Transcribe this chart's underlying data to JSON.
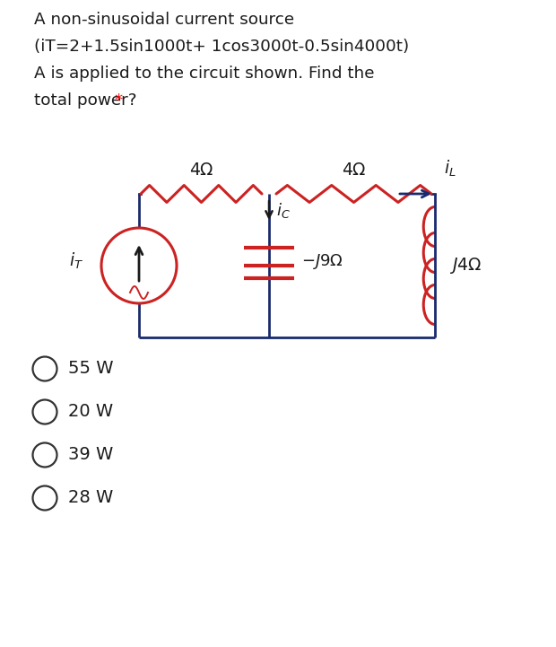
{
  "bg_color": "#ffffff",
  "title_lines": [
    "A non-sinusoidal current source",
    "(iT=2+1.5sin1000t+ 1cos3000t-0.5sin4000t)",
    "A is applied to the circuit shown. Find the",
    "total power? *"
  ],
  "title_color": "#1a1a1a",
  "title_fontsize": 13.2,
  "wire_color": "#1a2a6e",
  "resistor_color": "#cc2222",
  "source_color": "#cc2222",
  "inductor_color": "#cc2222",
  "cap_color": "#cc2222",
  "arrow_color": "#1a2a6e",
  "label_color": "#1a1a1a",
  "options": [
    "55 W",
    "20 W",
    "39 W",
    "28 W"
  ],
  "option_fontsize": 14,
  "label_fontsize": 13.5
}
